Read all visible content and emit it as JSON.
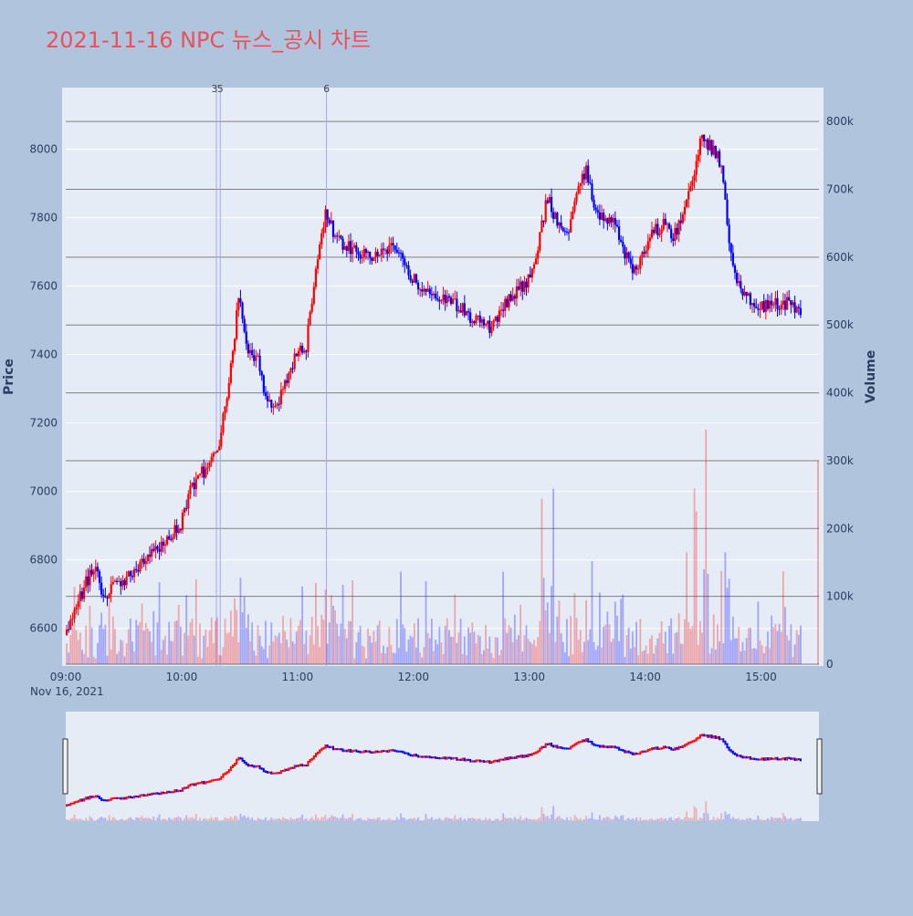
{
  "title": "2021-11-16 NPC 뉴스_공시 차트",
  "colors": {
    "background": "#b0c4de",
    "plot_bg": "#e5ecf6",
    "up": "#ff0000",
    "down": "#0000ff",
    "title": "#e8525a",
    "gridline_volume": "#808080",
    "gridline_price": "#ffffff",
    "news_line": "#9fa8f0"
  },
  "chart_data": {
    "type": "candlestick",
    "xlabel": "",
    "ylabel": "Price",
    "y2label": "Volume",
    "date_label": "Nov 16, 2021",
    "x_range": [
      "09:00",
      "15:30"
    ],
    "x_ticks": [
      "09:00",
      "10:00",
      "11:00",
      "12:00",
      "13:00",
      "14:00",
      "15:00"
    ],
    "ylim": [
      6490,
      8180
    ],
    "y_ticks": [
      6600,
      6800,
      7000,
      7200,
      7400,
      7600,
      7800,
      8000
    ],
    "y2lim": [
      0,
      850000
    ],
    "y2_ticks": [
      0,
      100000,
      200000,
      300000,
      400000,
      500000,
      600000,
      700000,
      800000
    ],
    "y2_tick_labels": [
      "0",
      "100k",
      "200k",
      "300k",
      "400k",
      "500k",
      "600k",
      "700k",
      "800k"
    ],
    "news_markers": [
      {
        "label": "3",
        "time": "10:18"
      },
      {
        "label": "5",
        "time": "10:20"
      },
      {
        "label": "6",
        "time": "11:15"
      }
    ],
    "price_keypoints": [
      [
        "09:00",
        6580
      ],
      [
        "09:10",
        6720
      ],
      [
        "09:15",
        6780
      ],
      [
        "09:20",
        6700
      ],
      [
        "09:30",
        6740
      ],
      [
        "09:40",
        6790
      ],
      [
        "09:50",
        6840
      ],
      [
        "10:00",
        6900
      ],
      [
        "10:06",
        7020
      ],
      [
        "10:15",
        7080
      ],
      [
        "10:20",
        7140
      ],
      [
        "10:25",
        7320
      ],
      [
        "10:30",
        7560
      ],
      [
        "10:35",
        7420
      ],
      [
        "10:40",
        7380
      ],
      [
        "10:45",
        7260
      ],
      [
        "10:50",
        7250
      ],
      [
        "10:55",
        7320
      ],
      [
        "11:00",
        7400
      ],
      [
        "11:05",
        7420
      ],
      [
        "11:10",
        7660
      ],
      [
        "11:15",
        7820
      ],
      [
        "11:20",
        7740
      ],
      [
        "11:30",
        7700
      ],
      [
        "11:40",
        7680
      ],
      [
        "11:50",
        7720
      ],
      [
        "12:00",
        7620
      ],
      [
        "12:10",
        7580
      ],
      [
        "12:20",
        7560
      ],
      [
        "12:30",
        7510
      ],
      [
        "12:40",
        7480
      ],
      [
        "12:50",
        7560
      ],
      [
        "13:00",
        7620
      ],
      [
        "13:05",
        7720
      ],
      [
        "13:10",
        7860
      ],
      [
        "13:15",
        7780
      ],
      [
        "13:20",
        7740
      ],
      [
        "13:25",
        7880
      ],
      [
        "13:30",
        7940
      ],
      [
        "13:35",
        7820
      ],
      [
        "13:40",
        7800
      ],
      [
        "13:45",
        7780
      ],
      [
        "13:50",
        7700
      ],
      [
        "13:55",
        7640
      ],
      [
        "14:00",
        7700
      ],
      [
        "14:05",
        7760
      ],
      [
        "14:10",
        7780
      ],
      [
        "14:15",
        7740
      ],
      [
        "14:20",
        7800
      ],
      [
        "14:25",
        7920
      ],
      [
        "14:30",
        8040
      ],
      [
        "14:35",
        8000
      ],
      [
        "14:40",
        7960
      ],
      [
        "14:45",
        7680
      ],
      [
        "14:50",
        7580
      ],
      [
        "14:55",
        7560
      ],
      [
        "15:00",
        7540
      ],
      [
        "15:05",
        7540
      ],
      [
        "15:10",
        7550
      ],
      [
        "15:15",
        7550
      ],
      [
        "15:20",
        7530
      ]
    ],
    "volume_bursts": [
      [
        "10:20",
        1.6
      ],
      [
        "10:30",
        2.1
      ],
      [
        "11:10",
        2.5
      ],
      [
        "11:15",
        1.8
      ],
      [
        "13:10",
        2.8
      ],
      [
        "13:25",
        2.3
      ],
      [
        "14:25",
        2.2
      ],
      [
        "14:30",
        2.6
      ],
      [
        "14:45",
        2.4
      ]
    ],
    "last_volume": 300000,
    "grid": true,
    "legend": "none"
  }
}
